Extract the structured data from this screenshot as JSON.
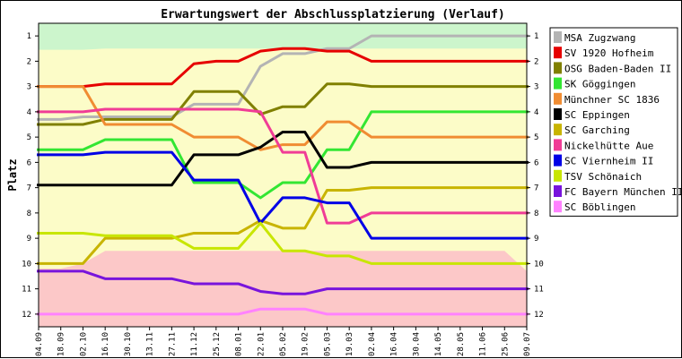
{
  "chart_data": {
    "type": "line",
    "title": "Erwartungswert der Abschlussplatzierung (Verlauf)",
    "ylabel": "Platz",
    "xlabel": "",
    "ylim": [
      12,
      1
    ],
    "y_ticks": [
      "1",
      "2",
      "3",
      "4",
      "5",
      "6",
      "7",
      "8",
      "9",
      "10",
      "11",
      "12"
    ],
    "x": [
      "04.09",
      "18.09",
      "02.10",
      "16.10",
      "30.10",
      "13.11",
      "27.11",
      "11.12",
      "25.12",
      "08.01",
      "22.01",
      "05.02",
      "19.02",
      "05.03",
      "19.03",
      "02.04",
      "16.04",
      "30.04",
      "14.05",
      "28.05",
      "11.06",
      "25.06",
      "09.07"
    ],
    "zones": [
      {
        "name": "promotion",
        "color": "#ccf5cc",
        "from": 0.5,
        "upper": [
          1.55,
          1.55,
          1.55,
          1.5,
          1.5,
          1.5,
          1.5,
          1.5,
          1.5,
          1.5,
          1.5,
          1.5,
          1.5,
          1.5,
          1.5,
          1.5,
          1.5,
          1.5,
          1.5,
          1.5,
          1.5,
          1.5,
          1.5
        ]
      },
      {
        "name": "relegation",
        "color": "#fcc8c8",
        "to": 12.5,
        "lower": [
          10.2,
          10.2,
          10.0,
          9.5,
          9.5,
          9.5,
          9.5,
          9.5,
          9.5,
          9.5,
          9.5,
          9.5,
          9.5,
          9.5,
          9.5,
          9.5,
          9.5,
          9.5,
          9.5,
          9.5,
          9.5,
          9.5,
          10.3
        ]
      },
      {
        "name": "midfield",
        "color": "#fcfcc8"
      }
    ],
    "series": [
      {
        "name": "MSA Zugzwang",
        "color": "#b4b4b4",
        "values": [
          4.3,
          4.3,
          4.2,
          4.2,
          4.2,
          4.2,
          4.2,
          3.7,
          3.7,
          3.7,
          2.2,
          1.7,
          1.7,
          1.5,
          1.5,
          1.0,
          1.0,
          1.0,
          1.0,
          1.0,
          1.0,
          1.0,
          1.0
        ]
      },
      {
        "name": "SV 1920 Hofheim",
        "color": "#e60000",
        "values": [
          3.0,
          3.0,
          3.0,
          2.9,
          2.9,
          2.9,
          2.9,
          2.1,
          2.0,
          2.0,
          1.6,
          1.5,
          1.5,
          1.6,
          1.6,
          2.0,
          2.0,
          2.0,
          2.0,
          2.0,
          2.0,
          2.0,
          2.0
        ]
      },
      {
        "name": "OSG Baden-Baden II",
        "color": "#808000",
        "values": [
          4.5,
          4.5,
          4.5,
          4.3,
          4.3,
          4.3,
          4.3,
          3.2,
          3.2,
          3.2,
          4.1,
          3.8,
          3.8,
          2.9,
          2.9,
          3.0,
          3.0,
          3.0,
          3.0,
          3.0,
          3.0,
          3.0,
          3.0
        ]
      },
      {
        "name": "SK Göggingen",
        "color": "#33e633",
        "values": [
          5.5,
          5.5,
          5.5,
          5.1,
          5.1,
          5.1,
          5.1,
          6.8,
          6.8,
          6.8,
          7.4,
          6.8,
          6.8,
          5.5,
          5.5,
          4.0,
          4.0,
          4.0,
          4.0,
          4.0,
          4.0,
          4.0,
          4.0
        ]
      },
      {
        "name": "Münchner SC 1836",
        "color": "#f08c32",
        "values": [
          3.0,
          3.0,
          3.0,
          4.5,
          4.5,
          4.5,
          4.5,
          5.0,
          5.0,
          5.0,
          5.5,
          5.3,
          5.3,
          4.4,
          4.4,
          5.0,
          5.0,
          5.0,
          5.0,
          5.0,
          5.0,
          5.0,
          5.0
        ]
      },
      {
        "name": "SC Eppingen",
        "color": "#000000",
        "values": [
          6.9,
          6.9,
          6.9,
          6.9,
          6.9,
          6.9,
          6.9,
          5.7,
          5.7,
          5.7,
          5.4,
          4.8,
          4.8,
          6.2,
          6.2,
          6.0,
          6.0,
          6.0,
          6.0,
          6.0,
          6.0,
          6.0,
          6.0
        ]
      },
      {
        "name": "SC Garching",
        "color": "#c8b400",
        "values": [
          10.0,
          10.0,
          10.0,
          9.0,
          9.0,
          9.0,
          9.0,
          8.8,
          8.8,
          8.8,
          8.3,
          8.6,
          8.6,
          7.1,
          7.1,
          7.0,
          7.0,
          7.0,
          7.0,
          7.0,
          7.0,
          7.0,
          7.0
        ]
      },
      {
        "name": "Nickelhütte Aue",
        "color": "#f03c96",
        "values": [
          4.0,
          4.0,
          4.0,
          3.9,
          3.9,
          3.9,
          3.9,
          3.9,
          3.9,
          3.9,
          4.0,
          5.6,
          5.6,
          8.4,
          8.4,
          8.0,
          8.0,
          8.0,
          8.0,
          8.0,
          8.0,
          8.0,
          8.0
        ]
      },
      {
        "name": "SC Viernheim II",
        "color": "#0000e6",
        "values": [
          5.7,
          5.7,
          5.7,
          5.6,
          5.6,
          5.6,
          5.6,
          6.7,
          6.7,
          6.7,
          8.4,
          7.4,
          7.4,
          7.6,
          7.6,
          9.0,
          9.0,
          9.0,
          9.0,
          9.0,
          9.0,
          9.0,
          9.0
        ]
      },
      {
        "name": "TSV Schönaich",
        "color": "#c8e600",
        "values": [
          8.8,
          8.8,
          8.8,
          8.9,
          8.9,
          8.9,
          8.9,
          9.4,
          9.4,
          9.4,
          8.4,
          9.5,
          9.5,
          9.7,
          9.7,
          10.0,
          10.0,
          10.0,
          10.0,
          10.0,
          10.0,
          10.0,
          10.0
        ]
      },
      {
        "name": "FC Bayern München II",
        "color": "#7814dc",
        "values": [
          10.3,
          10.3,
          10.3,
          10.6,
          10.6,
          10.6,
          10.6,
          10.8,
          10.8,
          10.8,
          11.1,
          11.2,
          11.2,
          11.0,
          11.0,
          11.0,
          11.0,
          11.0,
          11.0,
          11.0,
          11.0,
          11.0,
          11.0
        ]
      },
      {
        "name": "SC Böblingen",
        "color": "#ff82ff",
        "values": [
          12.0,
          12.0,
          12.0,
          12.0,
          12.0,
          12.0,
          12.0,
          12.0,
          12.0,
          12.0,
          11.8,
          11.8,
          11.8,
          12.0,
          12.0,
          12.0,
          12.0,
          12.0,
          12.0,
          12.0,
          12.0,
          12.0,
          12.0
        ]
      }
    ]
  }
}
